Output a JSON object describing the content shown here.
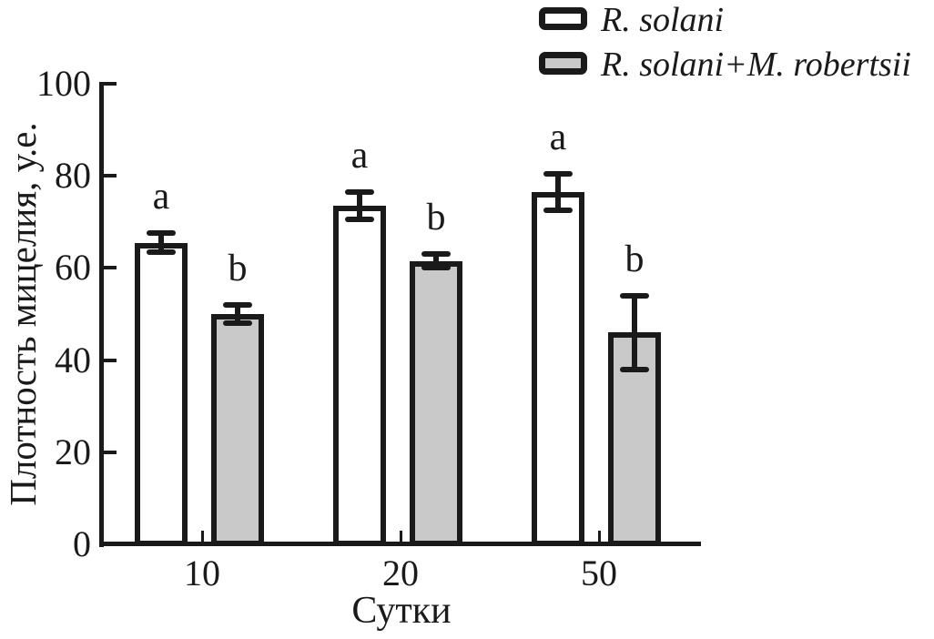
{
  "accent_colors": {
    "stroke": "#1a1a1a",
    "series1_fill": "#ffffff",
    "series2_fill": "#c9c9c9"
  },
  "chart_data": {
    "type": "bar",
    "title": "",
    "categories": [
      "10",
      "20",
      "50"
    ],
    "series": [
      {
        "name": "R. solani",
        "fill": "#ffffff",
        "values": [
          65.5,
          73.5,
          76.5
        ],
        "errors": [
          2,
          3,
          4
        ],
        "sig_letters": [
          "a",
          "a",
          "a"
        ]
      },
      {
        "name": "R. solani+M. robertsii",
        "fill": "#c9c9c9",
        "values": [
          50,
          61.5,
          46
        ],
        "errors": [
          2,
          1.5,
          8
        ],
        "sig_letters": [
          "b",
          "b",
          "b"
        ]
      }
    ],
    "xlabel": "Сутки",
    "ylabel": "Плотность мицелия, у.е.",
    "ylim": [
      0,
      100
    ],
    "yticks": [
      0,
      20,
      40,
      60,
      80,
      100
    ],
    "grid": false,
    "legend_position": "top-right",
    "error_bars": true
  }
}
